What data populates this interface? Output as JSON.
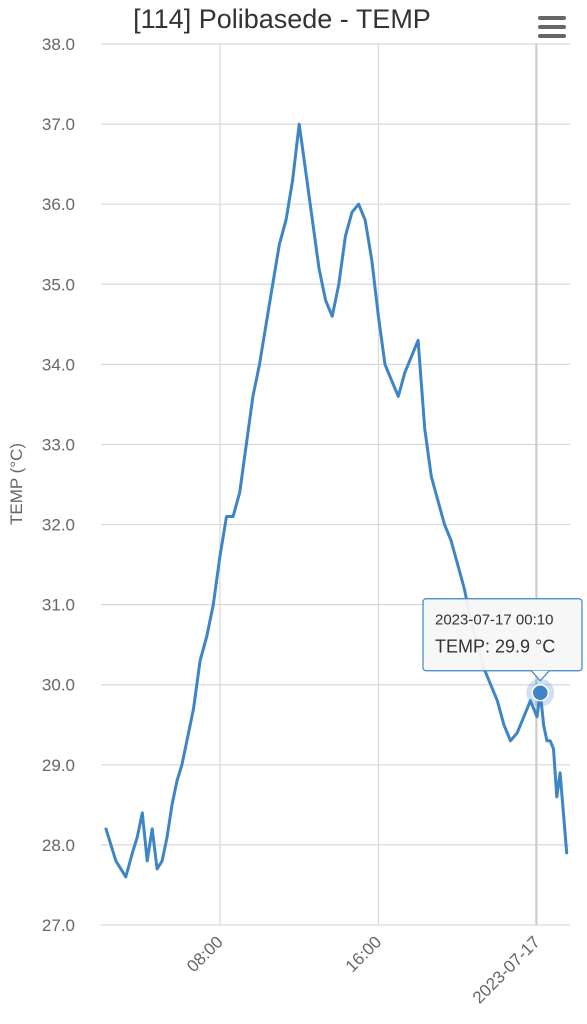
{
  "title": "[114] Polibasede - TEMP",
  "menu_icon": "hamburger-menu-icon",
  "colors": {
    "series": "#3d85c6",
    "grid": "#d9d9d9",
    "text": "#666666",
    "title": "#333333"
  },
  "chart_data": {
    "type": "line",
    "title": "[114] Polibasede - TEMP",
    "xlabel": "",
    "ylabel": "TEMP (°C)",
    "ylim": [
      27,
      38
    ],
    "yticks": [
      "27.0",
      "28.0",
      "29.0",
      "30.0",
      "31.0",
      "32.0",
      "33.0",
      "34.0",
      "35.0",
      "36.0",
      "37.0",
      "38.0"
    ],
    "xlim": [
      "2023-07-16 02:00",
      "2023-07-17 01:40"
    ],
    "xticks": [
      {
        "at": "2023-07-16 08:00",
        "label": "08:00"
      },
      {
        "at": "2023-07-16 16:00",
        "label": "16:00"
      },
      {
        "at": "2023-07-17 00:00",
        "label": "2023-07-17"
      }
    ],
    "grid": true,
    "legend": "none",
    "series": [
      {
        "x": [
          "2023-07-16 02:15",
          "2023-07-16 02:45",
          "2023-07-16 03:15",
          "2023-07-16 03:35",
          "2023-07-16 03:50",
          "2023-07-16 04:05",
          "2023-07-16 04:20",
          "2023-07-16 04:35",
          "2023-07-16 04:50",
          "2023-07-16 05:05",
          "2023-07-16 05:20",
          "2023-07-16 05:35",
          "2023-07-16 05:50",
          "2023-07-16 06:05",
          "2023-07-16 06:20",
          "2023-07-16 06:40",
          "2023-07-16 07:00",
          "2023-07-16 07:20",
          "2023-07-16 07:40",
          "2023-07-16 08:00",
          "2023-07-16 08:20",
          "2023-07-16 08:40",
          "2023-07-16 09:00",
          "2023-07-16 09:20",
          "2023-07-16 09:40",
          "2023-07-16 10:00",
          "2023-07-16 10:20",
          "2023-07-16 10:40",
          "2023-07-16 11:00",
          "2023-07-16 11:20",
          "2023-07-16 11:40",
          "2023-07-16 12:00",
          "2023-07-16 12:20",
          "2023-07-16 12:40",
          "2023-07-16 13:00",
          "2023-07-16 13:20",
          "2023-07-16 13:40",
          "2023-07-16 14:00",
          "2023-07-16 14:20",
          "2023-07-16 14:40",
          "2023-07-16 15:00",
          "2023-07-16 15:20",
          "2023-07-16 15:40",
          "2023-07-16 16:00",
          "2023-07-16 16:20",
          "2023-07-16 16:40",
          "2023-07-16 17:00",
          "2023-07-16 17:20",
          "2023-07-16 17:40",
          "2023-07-16 18:00",
          "2023-07-16 18:20",
          "2023-07-16 18:40",
          "2023-07-16 19:00",
          "2023-07-16 19:20",
          "2023-07-16 19:40",
          "2023-07-16 20:00",
          "2023-07-16 20:20",
          "2023-07-16 20:40",
          "2023-07-16 21:00",
          "2023-07-16 21:20",
          "2023-07-16 21:40",
          "2023-07-16 22:00",
          "2023-07-16 22:20",
          "2023-07-16 22:40",
          "2023-07-16 23:00",
          "2023-07-16 23:20",
          "2023-07-16 23:40",
          "2023-07-17 00:00",
          "2023-07-17 00:10",
          "2023-07-17 00:20",
          "2023-07-17 00:30",
          "2023-07-17 00:40",
          "2023-07-17 00:50",
          "2023-07-17 01:00",
          "2023-07-17 01:10",
          "2023-07-17 01:20",
          "2023-07-17 01:30"
        ],
        "values": [
          28.2,
          27.8,
          27.6,
          27.9,
          28.1,
          28.4,
          27.8,
          28.2,
          27.7,
          27.8,
          28.1,
          28.5,
          28.8,
          29.0,
          29.3,
          29.7,
          30.3,
          30.6,
          31.0,
          31.6,
          32.1,
          32.1,
          32.4,
          33.0,
          33.6,
          34.0,
          34.5,
          35.0,
          35.5,
          35.8,
          36.3,
          37.0,
          36.4,
          35.8,
          35.2,
          34.8,
          34.6,
          35.0,
          35.6,
          35.9,
          36.0,
          35.8,
          35.3,
          34.6,
          34.0,
          33.8,
          33.6,
          33.9,
          34.1,
          34.3,
          33.2,
          32.6,
          32.3,
          32.0,
          31.8,
          31.5,
          31.2,
          30.8,
          30.5,
          30.2,
          30.0,
          29.8,
          29.5,
          29.3,
          29.4,
          29.6,
          29.8,
          29.6,
          29.9,
          29.5,
          29.3,
          29.3,
          29.2,
          28.6,
          28.9,
          28.4,
          27.9
        ]
      }
    ]
  },
  "tooltip": {
    "time": "2023-07-17 00:10",
    "label": "TEMP: 29.9 °C",
    "x": "2023-07-17 00:10",
    "y": 29.9
  }
}
